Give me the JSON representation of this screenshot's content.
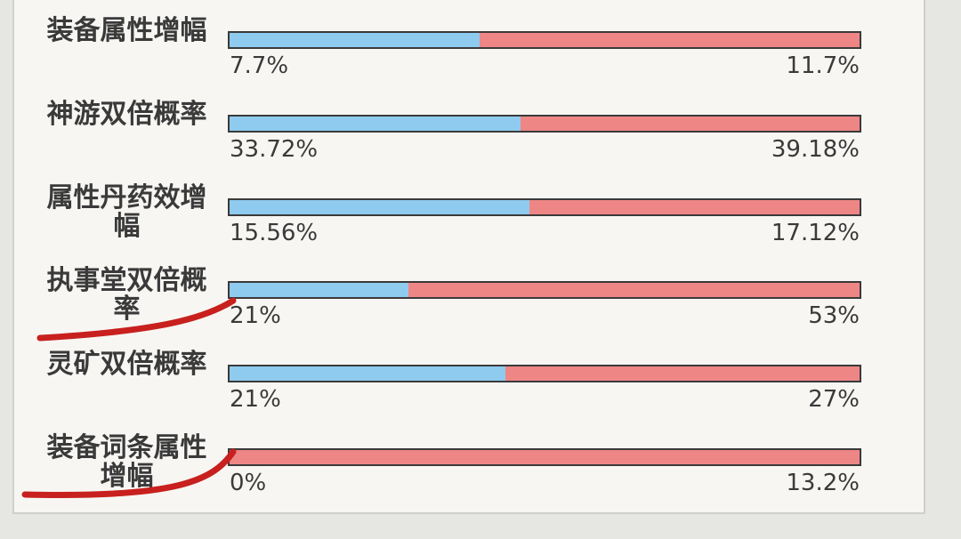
{
  "rows": [
    {
      "label": "装备属性增幅",
      "values": [
        7.7,
        11.7
      ],
      "value_labels": [
        "7.7%",
        "11.7%"
      ]
    },
    {
      "label": "神游双倍概率",
      "values": [
        33.72,
        39.18
      ],
      "value_labels": [
        "33.72%",
        "39.18%"
      ]
    },
    {
      "label": "属性丹药效增幅",
      "values": [
        15.56,
        17.12
      ],
      "value_labels": [
        "15.56%",
        "17.12%"
      ]
    },
    {
      "label": "执事堂双倍概率",
      "values": [
        21,
        53
      ],
      "value_labels": [
        "21%",
        "53%"
      ]
    },
    {
      "label": "灵矿双倍概率",
      "values": [
        21,
        27
      ],
      "value_labels": [
        "21%",
        "27%"
      ]
    },
    {
      "label": "装备词条属性增幅",
      "values": [
        0,
        13.2
      ],
      "value_labels": [
        "0%",
        "13.2%"
      ]
    }
  ]
}
